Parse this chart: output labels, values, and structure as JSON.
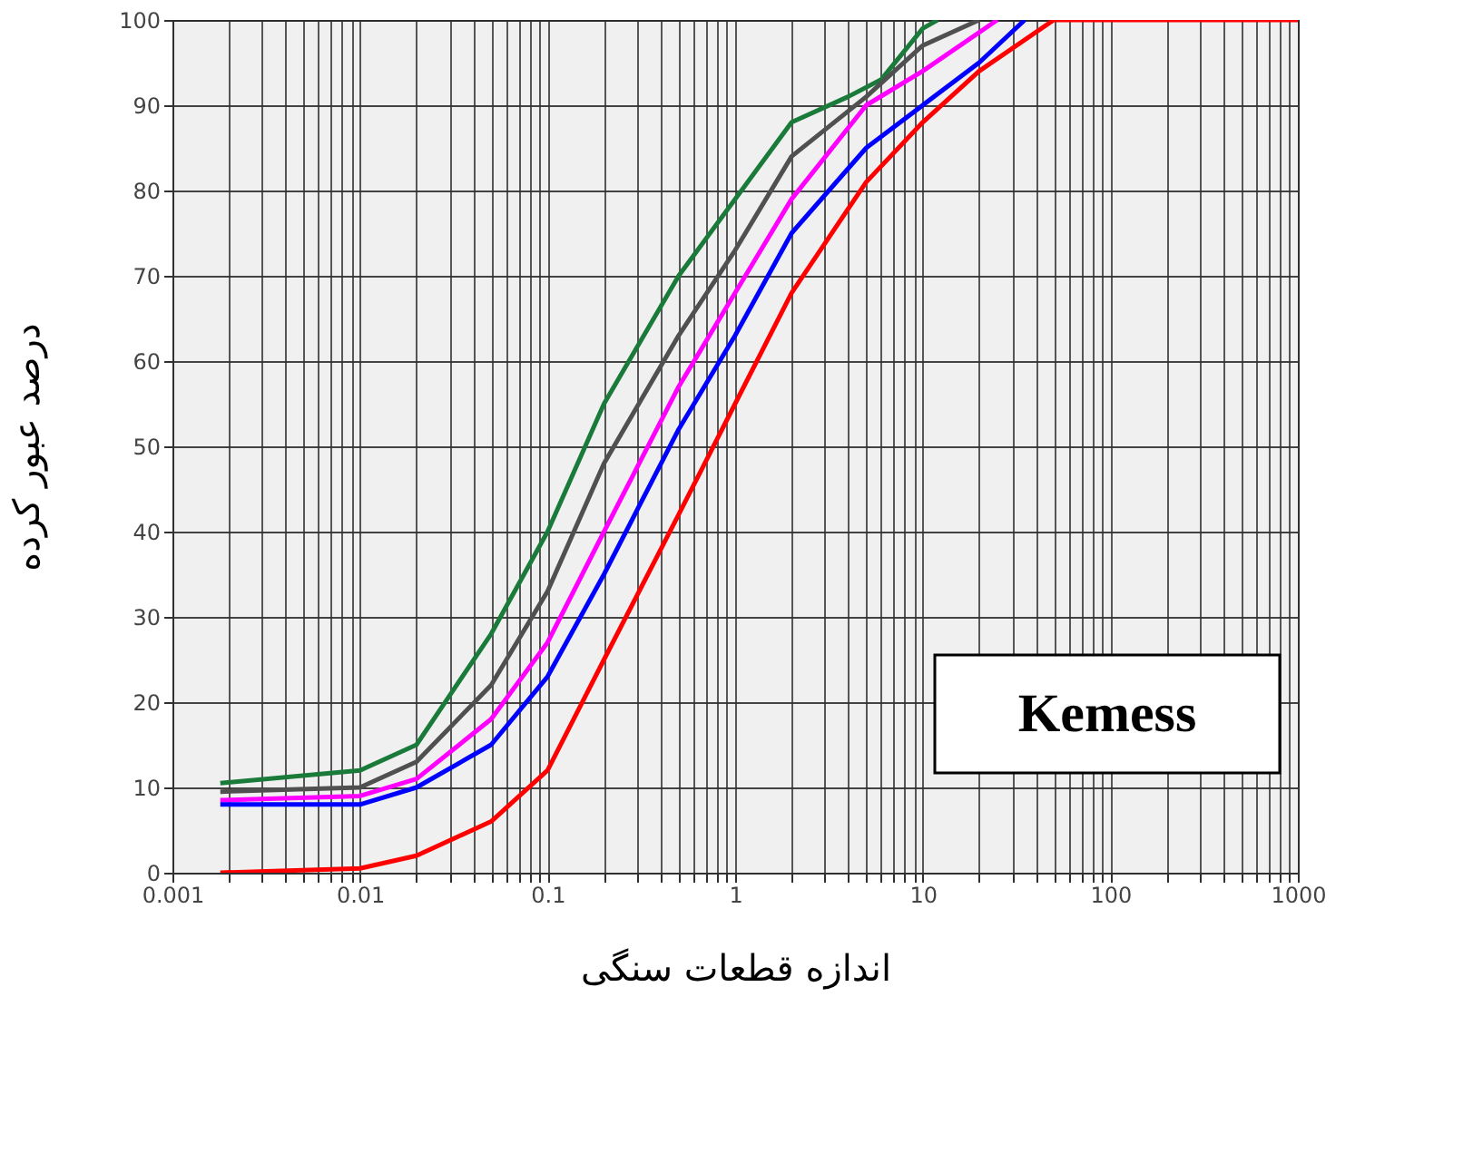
{
  "chart_data": {
    "type": "line",
    "xlabel": "اندازه قطعات سنگی",
    "ylabel": "درصد عبور کرده",
    "log": "x",
    "grid": true,
    "legend": false,
    "marker": "none",
    "line_style": "solid",
    "xlim": [
      0.001,
      1000
    ],
    "ylim": [
      0,
      100
    ],
    "xticks": [
      0.001,
      {
        "value": 0.002,
        "label": null
      },
      {
        "value": 0.003,
        "label": null
      },
      {
        "value": 0.004,
        "label": null
      },
      {
        "value": 0.005,
        "label": null
      },
      {
        "value": 0.006,
        "label": null
      },
      {
        "value": 0.007,
        "label": null
      },
      {
        "value": 0.008,
        "label": null
      },
      {
        "value": 0.009,
        "label": null
      },
      0.01,
      {
        "value": 0.02,
        "label": null
      },
      {
        "value": 0.03,
        "label": null
      },
      {
        "value": 0.04,
        "label": null
      },
      {
        "value": 0.05,
        "label": null
      },
      {
        "value": 0.06,
        "label": null
      },
      {
        "value": 0.07,
        "label": null
      },
      {
        "value": 0.08,
        "label": null
      },
      {
        "value": 0.09,
        "label": null
      },
      0.1,
      {
        "value": 0.2,
        "label": null
      },
      {
        "value": 0.3,
        "label": null
      },
      {
        "value": 0.4,
        "label": null
      },
      {
        "value": 0.5,
        "label": null
      },
      {
        "value": 0.6,
        "label": null
      },
      {
        "value": 0.7,
        "label": null
      },
      {
        "value": 0.8,
        "label": null
      },
      {
        "value": 0.9,
        "label": null
      },
      1,
      {
        "value": 2,
        "label": null
      },
      {
        "value": 3,
        "label": null
      },
      {
        "value": 4,
        "label": null
      },
      {
        "value": 5,
        "label": null
      },
      {
        "value": 6,
        "label": null
      },
      {
        "value": 7,
        "label": null
      },
      {
        "value": 8,
        "label": null
      },
      {
        "value": 9,
        "label": null
      },
      10,
      {
        "value": 20,
        "label": null
      },
      {
        "value": 30,
        "label": null
      },
      {
        "value": 40,
        "label": null
      },
      {
        "value": 50,
        "label": null
      },
      {
        "value": 60,
        "label": null
      },
      {
        "value": 70,
        "label": null
      },
      {
        "value": 80,
        "label": null
      },
      {
        "value": 90,
        "label": null
      },
      100,
      {
        "value": 200,
        "label": null
      },
      {
        "value": 300,
        "label": null
      },
      {
        "value": 400,
        "label": null
      },
      {
        "value": 500,
        "label": null
      },
      {
        "value": 600,
        "label": null
      },
      {
        "value": 700,
        "label": null
      },
      {
        "value": 800,
        "label": null
      },
      {
        "value": 900,
        "label": null
      },
      1000
    ],
    "yticks": [
      0,
      10,
      20,
      30,
      40,
      50,
      60,
      70,
      80,
      90,
      100
    ],
    "annotations": [
      "Kemess"
    ],
    "series": [
      {
        "color": "#1a7a3a",
        "x": [
          0.0018,
          0.01,
          0.02,
          0.05,
          0.1,
          0.2,
          0.5,
          1,
          2,
          4,
          6,
          10,
          12
        ],
        "values": [
          10.5,
          12,
          15,
          28,
          40,
          55,
          70,
          79,
          88,
          91,
          93,
          99,
          100
        ]
      },
      {
        "color": "#505050",
        "x": [
          0.0018,
          0.01,
          0.02,
          0.05,
          0.1,
          0.2,
          0.5,
          1,
          2,
          5,
          10,
          20
        ],
        "values": [
          9.5,
          10,
          13,
          22,
          33,
          48,
          63,
          73,
          84,
          91,
          97,
          100
        ]
      },
      {
        "color": "#ff00ff",
        "x": [
          0.0018,
          0.01,
          0.02,
          0.05,
          0.1,
          0.2,
          0.5,
          1,
          2,
          5,
          10,
          25
        ],
        "values": [
          8.5,
          9,
          11,
          18,
          27,
          40,
          57,
          68,
          79,
          90,
          94,
          100
        ]
      },
      {
        "color": "#0000ff",
        "x": [
          0.0018,
          0.01,
          0.02,
          0.05,
          0.1,
          0.2,
          0.5,
          1,
          2,
          5,
          10,
          20,
          35
        ],
        "values": [
          8,
          8,
          10,
          15,
          23,
          35,
          52,
          63,
          75,
          85,
          90,
          95,
          100
        ]
      },
      {
        "color": "#ff0000",
        "x": [
          0.0018,
          0.01,
          0.02,
          0.05,
          0.1,
          0.2,
          0.5,
          1,
          2,
          5,
          10,
          20,
          50,
          1000
        ],
        "values": [
          0,
          0.5,
          2,
          6,
          12,
          25,
          42,
          55,
          68,
          81,
          88,
          94,
          100,
          100
        ]
      }
    ]
  }
}
